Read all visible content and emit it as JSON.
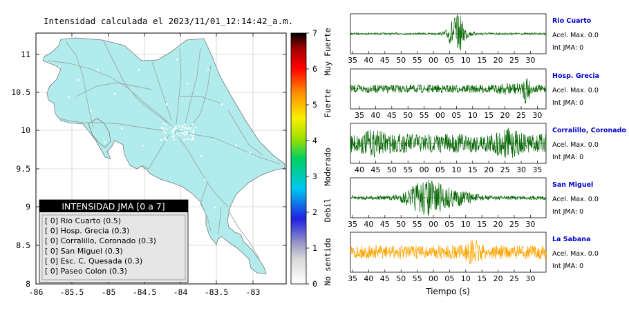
{
  "map": {
    "title": "Intensidad calculada el 2023/11/01_12:14:42_a.m.",
    "x_ticks": [
      "-86",
      "-85.5",
      "-85",
      "-84.5",
      "-84",
      "-83.5",
      "-83"
    ],
    "y_ticks": [
      "11",
      "10.5",
      "10",
      "9.5",
      "9",
      "8.5",
      "8"
    ],
    "land_color": "#b2ebeb",
    "legend": {
      "title": "INTENSIDAD JMA [0 a 7]",
      "rows": [
        "[ 0] Rio Cuarto (0.5)",
        "[ 0] Hosp. Grecia (0.3)",
        "[ 0] Corralillo, Coronado (0.3)",
        "[ 0] San Miguel (0.3)",
        "[ 0] Esc. C. Quesada (0.3)",
        "[ 0] Paseo Colon (0.3)"
      ]
    }
  },
  "colorbar": {
    "ticks": [
      "7",
      "6",
      "5",
      "4",
      "3",
      "2",
      "1",
      "0"
    ],
    "labels": [
      "Muy Fuerte",
      "Fuerte",
      "Moderado",
      "Debil",
      "No sentido"
    ]
  },
  "waveforms": {
    "xlabel": "Tiempo (s)",
    "stations": [
      {
        "name": "Rio Cuarto",
        "acel": "Acel. Max. 0.0",
        "jma": "Int JMA: 0",
        "color": "#006400",
        "ticks": [
          "35",
          "40",
          "45",
          "50",
          "55",
          "00",
          "05",
          "10",
          "15",
          "20",
          "25",
          "30"
        ]
      },
      {
        "name": "Hosp. Grecia",
        "acel": "Acel. Max. 0.0",
        "jma": "Int JMA: 0",
        "color": "#006400",
        "ticks": [
          "35",
          "40",
          "45",
          "50",
          "55",
          "00",
          "05",
          "10",
          "15",
          "20",
          "25",
          "30"
        ]
      },
      {
        "name": "Corralillo, Coronado",
        "acel": "Acel. Max. 0.0",
        "jma": "Int JMA: 0",
        "color": "#006400",
        "ticks": [
          "40",
          "45",
          "50",
          "55",
          "00",
          "05",
          "10",
          "15",
          "20",
          "25",
          "30",
          "35"
        ]
      },
      {
        "name": "San Miguel",
        "acel": "Acel. Max. 0.0",
        "jma": "Int JMA: 0",
        "color": "#006400",
        "ticks": [
          "35",
          "40",
          "45",
          "50",
          "55",
          "00",
          "05",
          "10",
          "15",
          "20",
          "25",
          "30"
        ]
      },
      {
        "name": "La Sabana",
        "acel": "Acel. Max. 0.0",
        "jma": "Int JMA: 0",
        "color": "#ffa500",
        "ticks": [
          "35",
          "40",
          "45",
          "50",
          "55",
          "00",
          "05",
          "10",
          "15",
          "20",
          "25",
          "30"
        ]
      }
    ]
  },
  "chart_data": [
    {
      "type": "map",
      "title": "Intensidad calculada el 2023/11/01_12:14:42_a.m.",
      "xlim": [
        -86,
        -82.6
      ],
      "ylim": [
        8,
        11.3
      ],
      "legend_placement": "bottom-left",
      "legend_title": "INTENSIDAD JMA [0 a 7]",
      "stations": [
        {
          "name": "Rio Cuarto",
          "jma": 0,
          "value": 0.5
        },
        {
          "name": "Hosp. Grecia",
          "jma": 0,
          "value": 0.3
        },
        {
          "name": "Corralillo, Coronado",
          "jma": 0,
          "value": 0.3
        },
        {
          "name": "San Miguel",
          "jma": 0,
          "value": 0.3
        },
        {
          "name": "Esc. C. Quesada",
          "jma": 0,
          "value": 0.3
        },
        {
          "name": "Paseo Colon",
          "jma": 0,
          "value": 0.3
        }
      ]
    },
    {
      "type": "colorbar",
      "range": [
        0,
        7
      ],
      "labels": [
        "Muy Fuerte",
        "Fuerte",
        "Moderado",
        "Debil",
        "No sentido"
      ]
    },
    {
      "type": "line",
      "xlabel": "Tiempo (s)",
      "series": [
        {
          "name": "Rio Cuarto",
          "acel_max": 0.0,
          "int_jma": 0
        },
        {
          "name": "Hosp. Grecia",
          "acel_max": 0.0,
          "int_jma": 0
        },
        {
          "name": "Corralillo, Coronado",
          "acel_max": 0.0,
          "int_jma": 0
        },
        {
          "name": "San Miguel",
          "acel_max": 0.0,
          "int_jma": 0
        },
        {
          "name": "La Sabana",
          "acel_max": 0.0,
          "int_jma": 0
        }
      ]
    }
  ]
}
